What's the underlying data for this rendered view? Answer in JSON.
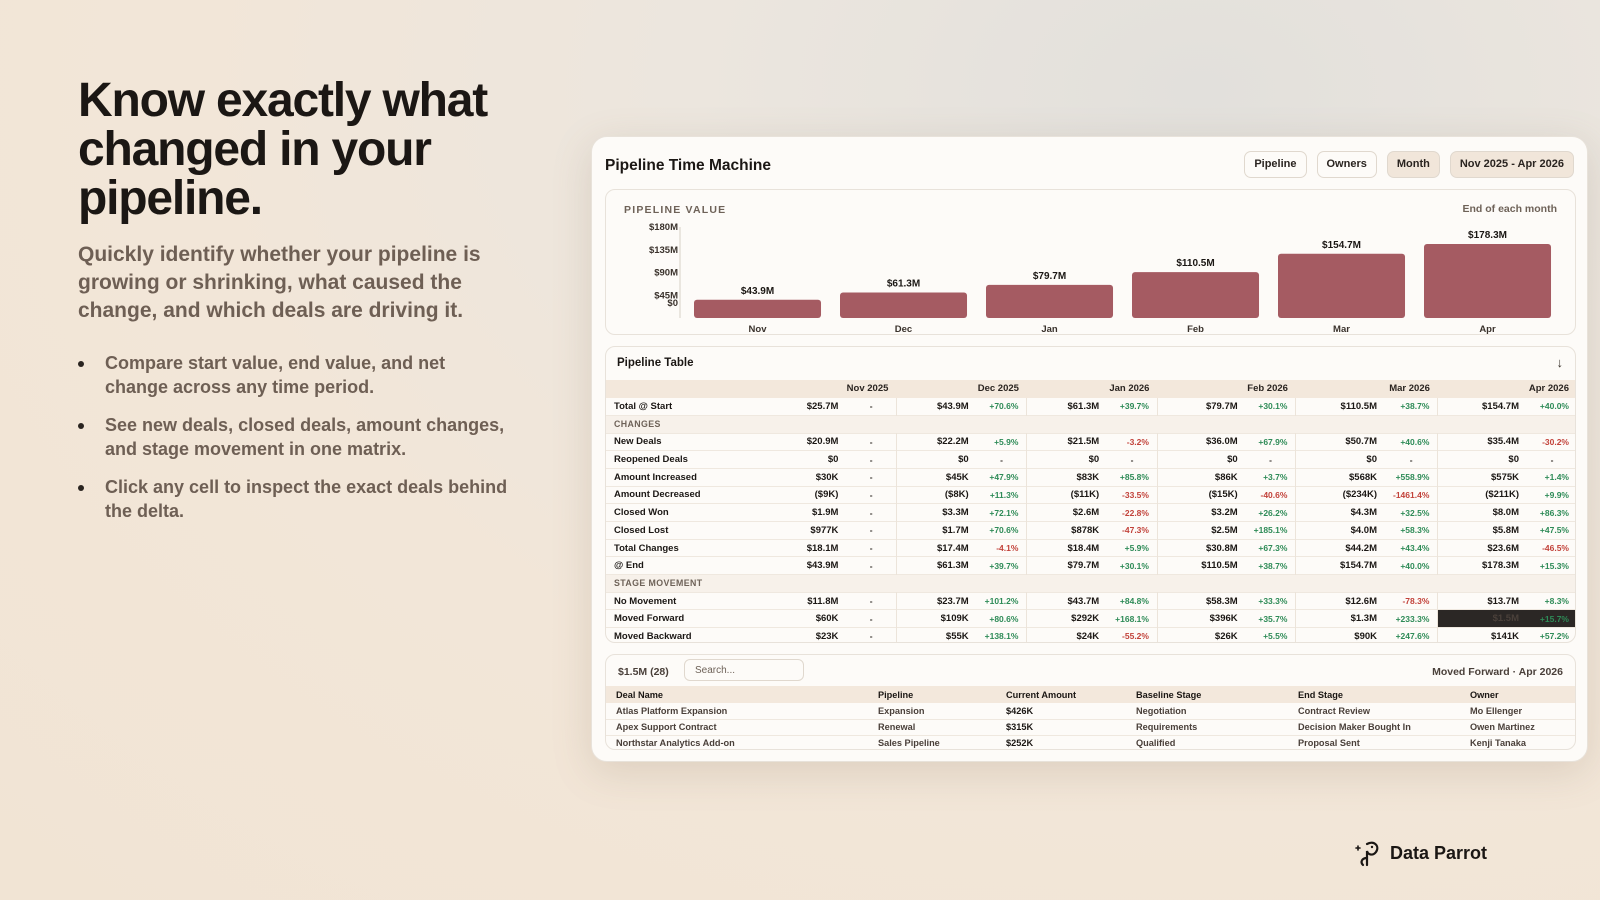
{
  "hero": {
    "title": "Know exactly what changed in your pipeline.",
    "subtitle": "Quickly identify whether your pipeline is growing or shrinking, what caused the change, and which deals are driving it.",
    "bullets": [
      "Compare start value, end value, and net change across any time period.",
      "See new deals, closed deals, amount changes, and stage movement in one matrix.",
      "Click any cell to inspect the exact deals behind the delta."
    ]
  },
  "card": {
    "title": "Pipeline Time Machine",
    "controls": [
      "Pipeline",
      "Owners",
      "Month",
      "Nov 2025 - Apr 2026"
    ]
  },
  "chart": {
    "label": "PIPELINE VALUE",
    "note": "End of each month"
  },
  "chart_data": {
    "type": "bar",
    "categories": [
      "Nov",
      "Dec",
      "Jan",
      "Feb",
      "Mar",
      "Apr"
    ],
    "values": [
      43.9,
      61.3,
      79.7,
      110.5,
      154.7,
      178.3
    ],
    "data_labels": [
      "$43.9M",
      "$61.3M",
      "$79.7M",
      "$110.5M",
      "$154.7M",
      "$178.3M"
    ],
    "yticks": [
      "$180M",
      "$135M",
      "$90M",
      "$45M",
      "$0"
    ],
    "ylim": [
      0,
      180
    ],
    "grid": false,
    "legend": "none",
    "bar_color": "#a55b62"
  },
  "table": {
    "title": "Pipeline Table",
    "arrow": "↓",
    "columns": [
      "Nov 2025",
      "Dec 2025",
      "Jan 2026",
      "Feb 2026",
      "Mar 2026",
      "Apr 2026"
    ],
    "rows": [
      {
        "label": "Total @ Start",
        "cells": [
          [
            "$25.7M",
            "-"
          ],
          [
            "$43.9M",
            "+70.6%"
          ],
          [
            "$61.3M",
            "+39.7%"
          ],
          [
            "$79.7M",
            "+30.1%"
          ],
          [
            "$110.5M",
            "+38.7%"
          ],
          [
            "$154.7M",
            "+40.0%"
          ]
        ]
      },
      {
        "section": "CHANGES"
      },
      {
        "label": "New Deals",
        "cells": [
          [
            "$20.9M",
            "-"
          ],
          [
            "$22.2M",
            "+5.9%"
          ],
          [
            "$21.5M",
            "-3.2%"
          ],
          [
            "$36.0M",
            "+67.9%"
          ],
          [
            "$50.7M",
            "+40.6%"
          ],
          [
            "$35.4M",
            "-30.2%"
          ]
        ]
      },
      {
        "label": "Reopened Deals",
        "cells": [
          [
            "$0",
            "-"
          ],
          [
            "$0",
            "-"
          ],
          [
            "$0",
            "-"
          ],
          [
            "$0",
            "-"
          ],
          [
            "$0",
            "-"
          ],
          [
            "$0",
            "-"
          ]
        ]
      },
      {
        "label": "Amount Increased",
        "cells": [
          [
            "$30K",
            "-"
          ],
          [
            "$45K",
            "+47.9%"
          ],
          [
            "$83K",
            "+85.8%"
          ],
          [
            "$86K",
            "+3.7%"
          ],
          [
            "$568K",
            "+558.9%"
          ],
          [
            "$575K",
            "+1.4%"
          ]
        ]
      },
      {
        "label": "Amount Decreased",
        "cells": [
          [
            "($9K)",
            "-"
          ],
          [
            "($8K)",
            "+11.3%"
          ],
          [
            "($11K)",
            "-33.5%"
          ],
          [
            "($15K)",
            "-40.6%"
          ],
          [
            "($234K)",
            "-1461.4%"
          ],
          [
            "($211K)",
            "+9.9%"
          ]
        ]
      },
      {
        "label": "Closed Won",
        "cells": [
          [
            "$1.9M",
            "-"
          ],
          [
            "$3.3M",
            "+72.1%"
          ],
          [
            "$2.6M",
            "-22.8%"
          ],
          [
            "$3.2M",
            "+26.2%"
          ],
          [
            "$4.3M",
            "+32.5%"
          ],
          [
            "$8.0M",
            "+86.3%"
          ]
        ]
      },
      {
        "label": "Closed Lost",
        "cells": [
          [
            "$977K",
            "-"
          ],
          [
            "$1.7M",
            "+70.6%"
          ],
          [
            "$878K",
            "-47.3%"
          ],
          [
            "$2.5M",
            "+185.1%"
          ],
          [
            "$4.0M",
            "+58.3%"
          ],
          [
            "$5.8M",
            "+47.5%"
          ]
        ]
      },
      {
        "label": "Total Changes",
        "cells": [
          [
            "$18.1M",
            "-"
          ],
          [
            "$17.4M",
            "-4.1%"
          ],
          [
            "$18.4M",
            "+5.9%"
          ],
          [
            "$30.8M",
            "+67.3%"
          ],
          [
            "$44.2M",
            "+43.4%"
          ],
          [
            "$23.6M",
            "-46.5%"
          ]
        ]
      },
      {
        "label": "@ End",
        "cells": [
          [
            "$43.9M",
            "-"
          ],
          [
            "$61.3M",
            "+39.7%"
          ],
          [
            "$79.7M",
            "+30.1%"
          ],
          [
            "$110.5M",
            "+38.7%"
          ],
          [
            "$154.7M",
            "+40.0%"
          ],
          [
            "$178.3M",
            "+15.3%"
          ]
        ]
      },
      {
        "section": "STAGE MOVEMENT"
      },
      {
        "label": "No Movement",
        "cells": [
          [
            "$11.8M",
            "-"
          ],
          [
            "$23.7M",
            "+101.2%"
          ],
          [
            "$43.7M",
            "+84.8%"
          ],
          [
            "$58.3M",
            "+33.3%"
          ],
          [
            "$12.6M",
            "-78.3%"
          ],
          [
            "$13.7M",
            "+8.3%"
          ]
        ]
      },
      {
        "label": "Moved Forward",
        "highlight": 5,
        "cells": [
          [
            "$60K",
            "-"
          ],
          [
            "$109K",
            "+80.6%"
          ],
          [
            "$292K",
            "+168.1%"
          ],
          [
            "$396K",
            "+35.7%"
          ],
          [
            "$1.3M",
            "+233.3%"
          ],
          [
            "$1.5M",
            "+15.7%"
          ]
        ]
      },
      {
        "label": "Moved Backward",
        "cells": [
          [
            "$23K",
            "-"
          ],
          [
            "$55K",
            "+138.1%"
          ],
          [
            "$24K",
            "-55.2%"
          ],
          [
            "$26K",
            "+5.5%"
          ],
          [
            "$90K",
            "+247.6%"
          ],
          [
            "$141K",
            "+57.2%"
          ]
        ]
      }
    ]
  },
  "deals": {
    "count": "$1.5M (28)",
    "search_placeholder": "Search...",
    "context": "Moved Forward · Apr 2026",
    "columns": [
      "Deal Name",
      "Pipeline",
      "Current Amount",
      "Baseline Stage",
      "End Stage",
      "Owner"
    ],
    "rows": [
      [
        "Atlas Platform Expansion",
        "Expansion",
        "$426K",
        "Negotiation",
        "Contract Review",
        "Mo Ellenger"
      ],
      [
        "Apex Support Contract",
        "Renewal",
        "$315K",
        "Requirements",
        "Decision Maker Bought In",
        "Owen Martinez"
      ],
      [
        "Northstar Analytics Add-on",
        "Sales Pipeline",
        "$252K",
        "Qualified",
        "Proposal Sent",
        "Kenji Tanaka"
      ]
    ]
  },
  "brand": {
    "name": "Data Parrot",
    "icon": "parrot-logo-icon"
  }
}
